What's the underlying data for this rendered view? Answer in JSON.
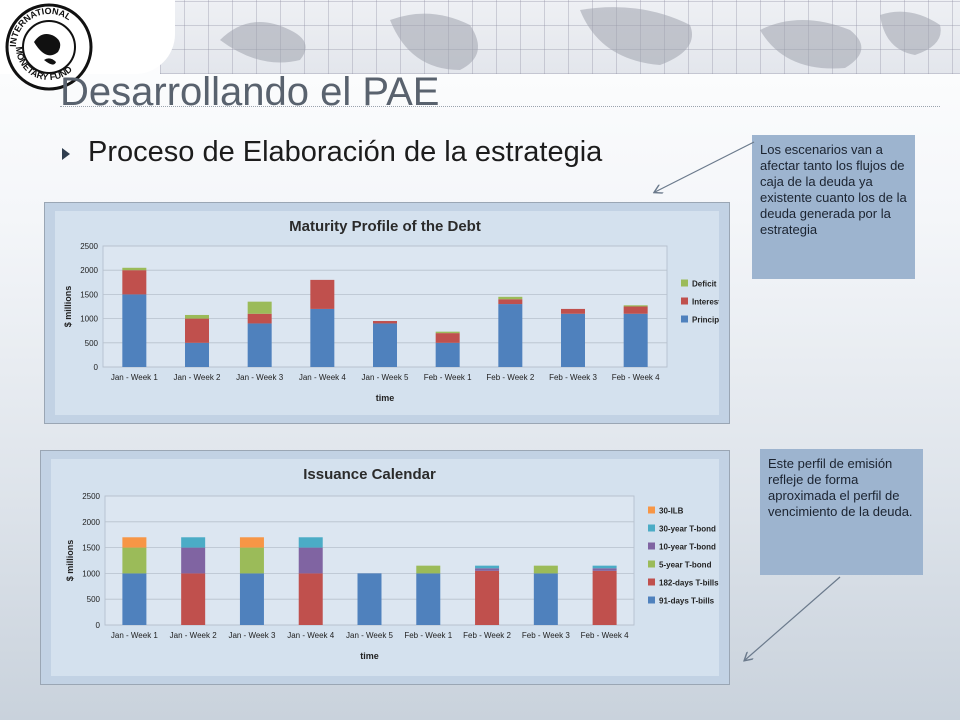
{
  "slide": {
    "title": "Desarrollando el PAE",
    "bullet": "Proceso de Elaboración de la estrategia",
    "callout_top": "Los escenarios van a afectar tanto los flujos de caja de la deuda ya existente cuanto los de la deuda generada por la estrategia",
    "callout_bottom": "Este perfil de emisión refleje de forma aproximada el perfil de vencimiento de la deuda.",
    "logo": {
      "text_top": "INTERNATIONAL",
      "text_bottom": "MONETARY FUND"
    }
  },
  "chart_data": [
    {
      "type": "bar",
      "stacked": true,
      "title": "Maturity Profile of the Debt",
      "xlabel": "time",
      "ylabel": "$ millions",
      "ylim": [
        0,
        2500
      ],
      "yticks": [
        0,
        500,
        1000,
        1500,
        2000,
        2500
      ],
      "grid": true,
      "legend_position": "right",
      "categories": [
        "Jan - Week 1",
        "Jan - Week 2",
        "Jan - Week 3",
        "Jan - Week 4",
        "Jan - Week 5",
        "Feb - Week 1",
        "Feb - Week 2",
        "Feb - Week 3",
        "Feb - Week 4"
      ],
      "series": [
        {
          "name": "Principal",
          "color": "#4f81bd",
          "values": [
            1500,
            500,
            900,
            1200,
            900,
            500,
            1300,
            1100,
            1100
          ]
        },
        {
          "name": "Interest",
          "color": "#c0504d",
          "values": [
            500,
            500,
            200,
            600,
            50,
            200,
            100,
            100,
            150
          ]
        },
        {
          "name": "Deficit",
          "color": "#9bbb59",
          "values": [
            50,
            75,
            250,
            0,
            0,
            30,
            50,
            0,
            25
          ]
        }
      ]
    },
    {
      "type": "bar",
      "stacked": true,
      "title": "Issuance Calendar",
      "xlabel": "time",
      "ylabel": "$ millions",
      "ylim": [
        0,
        2500
      ],
      "yticks": [
        0,
        500,
        1000,
        1500,
        2000,
        2500
      ],
      "grid": true,
      "legend_position": "right",
      "categories": [
        "Jan - Week 1",
        "Jan - Week 2",
        "Jan - Week 3",
        "Jan - Week 4",
        "Jan - Week 5",
        "Feb - Week 1",
        "Feb - Week 2",
        "Feb - Week 3",
        "Feb - Week 4"
      ],
      "series": [
        {
          "name": "91-days T-bills",
          "color": "#4f81bd",
          "values": [
            1000,
            0,
            1000,
            0,
            1000,
            1000,
            0,
            1000,
            0
          ]
        },
        {
          "name": "182-days T-bills",
          "color": "#c0504d",
          "values": [
            0,
            1000,
            0,
            1000,
            0,
            0,
            1050,
            0,
            1050
          ]
        },
        {
          "name": "5-year T-bond",
          "color": "#9bbb59",
          "values": [
            500,
            0,
            500,
            0,
            0,
            150,
            0,
            150,
            0
          ]
        },
        {
          "name": "10-year T-bond",
          "color": "#8064a2",
          "values": [
            0,
            500,
            0,
            500,
            0,
            0,
            50,
            0,
            50
          ]
        },
        {
          "name": "30-year T-bond",
          "color": "#4bacc6",
          "values": [
            0,
            200,
            0,
            200,
            0,
            0,
            50,
            0,
            50
          ]
        },
        {
          "name": "30-ILB",
          "color": "#f79646",
          "values": [
            200,
            0,
            200,
            0,
            0,
            0,
            0,
            0,
            0
          ]
        }
      ]
    }
  ]
}
